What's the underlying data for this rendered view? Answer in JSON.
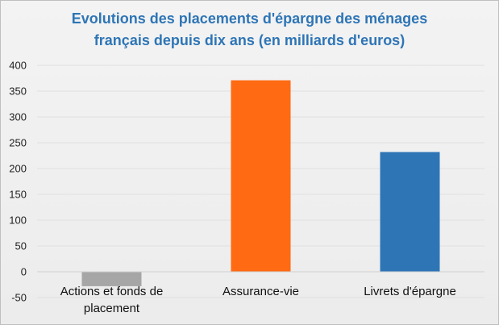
{
  "chart_data": {
    "type": "bar",
    "title_lines": [
      "Evolutions  des placements d'épargne des ménages",
      "français depuis dix ans (en milliards d'euros)"
    ],
    "categories": [
      "Actions et fonds de placement",
      "Assurance-vie",
      "Livrets d'épargne"
    ],
    "category_label_lines": [
      [
        "Actions et fonds de",
        "placement"
      ],
      [
        "Assurance-vie"
      ],
      [
        "Livrets d'épargne"
      ]
    ],
    "values": [
      -28,
      371,
      232
    ],
    "colors": [
      "#a6a6a6",
      "#ff6a13",
      "#2e75b6"
    ],
    "ylim": [
      -50,
      400
    ],
    "yticks": [
      -50,
      0,
      50,
      100,
      150,
      200,
      250,
      300,
      350,
      400
    ],
    "xlabel": "",
    "ylabel": "",
    "grid": true,
    "grid_color": "#e0e0e0",
    "title_color": "#2e75b6"
  }
}
